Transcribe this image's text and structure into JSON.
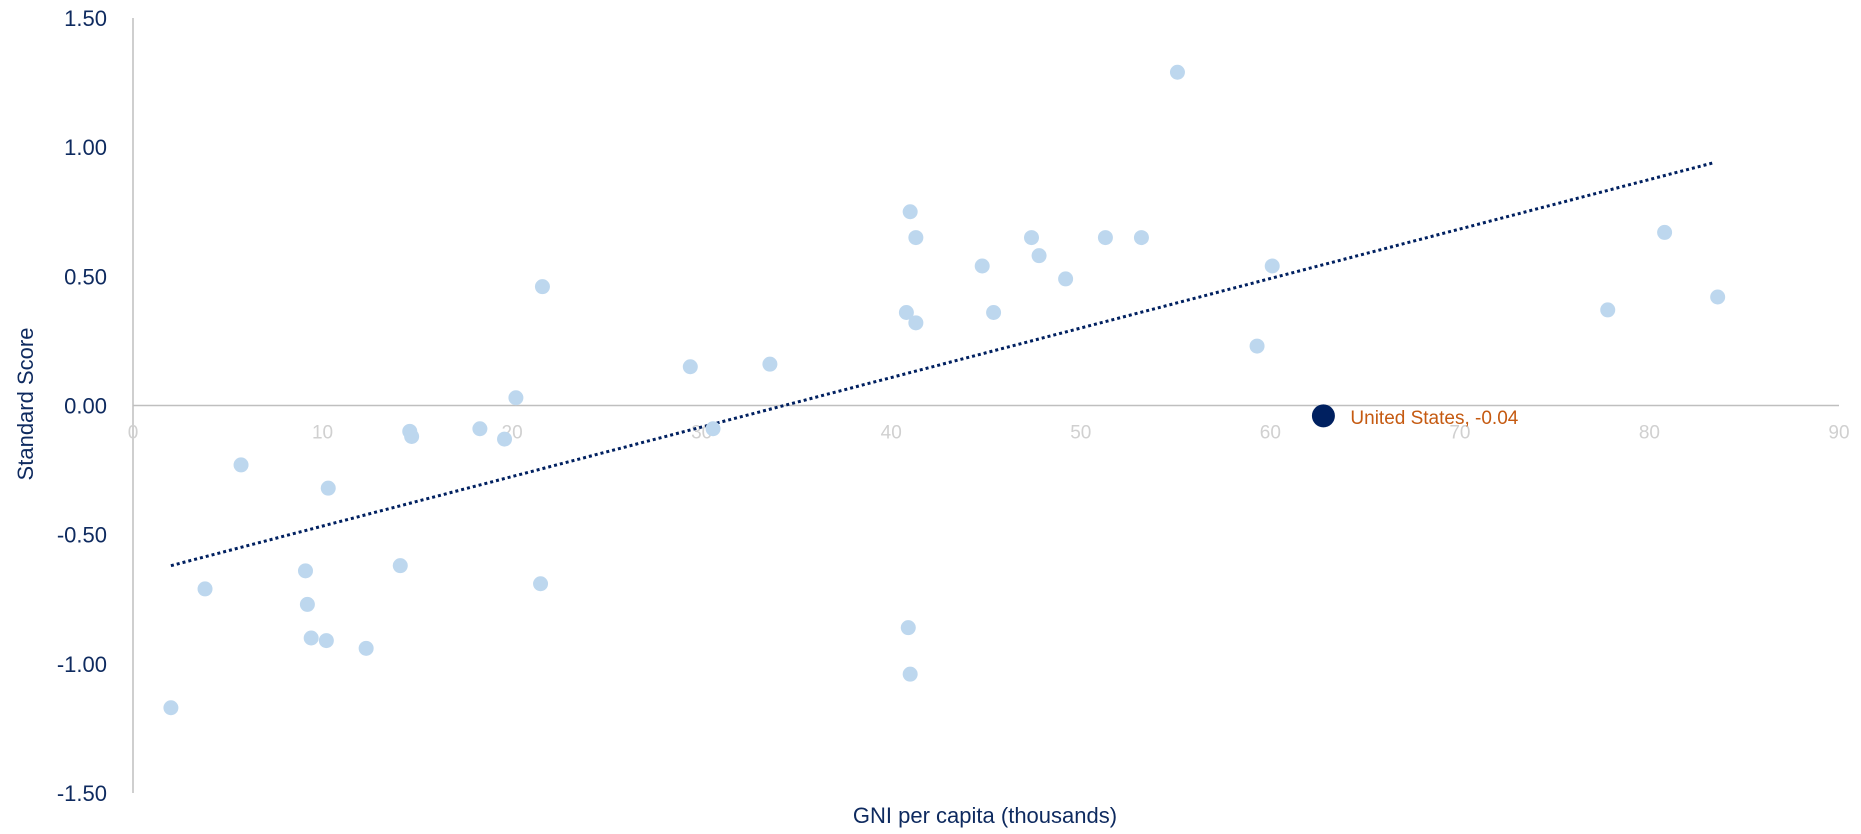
{
  "chart_data": {
    "type": "scatter",
    "xlabel": "GNI per capita (thousands)",
    "ylabel": "Standard Score",
    "xlim": [
      0,
      90
    ],
    "ylim": [
      -1.5,
      1.5
    ],
    "x_ticks": [
      "0",
      "10",
      "20",
      "30",
      "40",
      "50",
      "60",
      "70",
      "80",
      "90"
    ],
    "y_ticks": [
      "1.50",
      "1.00",
      "0.50",
      "0.00",
      "-0.50",
      "-1.00",
      "-1.50"
    ],
    "y_tick_values": [
      1.5,
      1.0,
      0.5,
      0.0,
      -0.5,
      -1.0,
      -1.5
    ],
    "grid": false,
    "colors": {
      "points": "#bdd7ee",
      "highlight": "#002060",
      "highlight_label": "#c55a11",
      "trendline": "#002060",
      "axis": "#bfbfbf",
      "tick_text": "#0e2a5f",
      "x_tick_text": "#d0d0d0"
    },
    "points": [
      {
        "x": 2.0,
        "y": -1.17
      },
      {
        "x": 3.8,
        "y": -0.71
      },
      {
        "x": 5.7,
        "y": -0.23
      },
      {
        "x": 9.1,
        "y": -0.64
      },
      {
        "x": 9.2,
        "y": -0.77
      },
      {
        "x": 9.4,
        "y": -0.9
      },
      {
        "x": 10.2,
        "y": -0.91
      },
      {
        "x": 10.3,
        "y": -0.32
      },
      {
        "x": 12.3,
        "y": -0.94
      },
      {
        "x": 14.1,
        "y": -0.62
      },
      {
        "x": 14.6,
        "y": -0.1
      },
      {
        "x": 14.7,
        "y": -0.12
      },
      {
        "x": 18.3,
        "y": -0.09
      },
      {
        "x": 19.6,
        "y": -0.13
      },
      {
        "x": 20.2,
        "y": 0.03
      },
      {
        "x": 21.5,
        "y": -0.69
      },
      {
        "x": 21.6,
        "y": 0.46
      },
      {
        "x": 29.4,
        "y": 0.15
      },
      {
        "x": 30.6,
        "y": -0.09
      },
      {
        "x": 33.6,
        "y": 0.16
      },
      {
        "x": 40.8,
        "y": 0.36
      },
      {
        "x": 40.9,
        "y": -0.86
      },
      {
        "x": 41.0,
        "y": 0.75
      },
      {
        "x": 41.0,
        "y": -1.04
      },
      {
        "x": 41.3,
        "y": 0.32
      },
      {
        "x": 41.3,
        "y": 0.65
      },
      {
        "x": 44.8,
        "y": 0.54
      },
      {
        "x": 45.4,
        "y": 0.36
      },
      {
        "x": 47.4,
        "y": 0.65
      },
      {
        "x": 47.8,
        "y": 0.58
      },
      {
        "x": 49.2,
        "y": 0.49
      },
      {
        "x": 51.3,
        "y": 0.65
      },
      {
        "x": 53.2,
        "y": 0.65
      },
      {
        "x": 55.1,
        "y": 1.29
      },
      {
        "x": 59.3,
        "y": 0.23
      },
      {
        "x": 60.1,
        "y": 0.54
      },
      {
        "x": 77.8,
        "y": 0.37
      },
      {
        "x": 80.8,
        "y": 0.67
      },
      {
        "x": 83.6,
        "y": 0.42
      }
    ],
    "highlight": {
      "x": 62.8,
      "y": -0.04,
      "label": "United States, -0.04"
    },
    "trendline": {
      "style": "dotted",
      "x_start": 2.0,
      "y_start": -0.62,
      "x_end": 83.4,
      "y_end": 0.94
    }
  }
}
